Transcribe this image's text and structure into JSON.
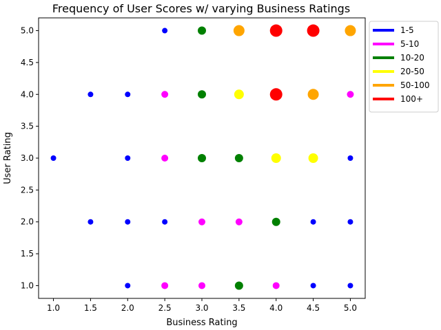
{
  "chart_data": {
    "type": "scatter",
    "title": "Frequency of User Scores w/ varying Business Ratings",
    "xlabel": "Business Rating",
    "ylabel": "User Rating",
    "xlim": [
      0.8,
      5.2
    ],
    "ylim": [
      0.8,
      5.2
    ],
    "x_ticks": [
      "1.0",
      "1.5",
      "2.0",
      "2.5",
      "3.0",
      "3.5",
      "4.0",
      "4.5",
      "5.0"
    ],
    "y_ticks": [
      "1.0",
      "1.5",
      "2.0",
      "2.5",
      "3.0",
      "3.5",
      "4.0",
      "4.5",
      "5.0"
    ],
    "grid": false,
    "legend_position": "outside-top-right",
    "legend": [
      {
        "label": "1-5",
        "color": "#0000ff"
      },
      {
        "label": "5-10",
        "color": "#ff00ff"
      },
      {
        "label": "10-20",
        "color": "#008000"
      },
      {
        "label": "20-50",
        "color": "#ffff00"
      },
      {
        "label": "50-100",
        "color": "#ffa500"
      },
      {
        "label": "100+",
        "color": "#ff0000"
      }
    ],
    "points": [
      {
        "x": 2.5,
        "y": 5.0,
        "bin": "1-5"
      },
      {
        "x": 3.0,
        "y": 5.0,
        "bin": "10-20"
      },
      {
        "x": 3.5,
        "y": 5.0,
        "bin": "50-100"
      },
      {
        "x": 4.0,
        "y": 5.0,
        "bin": "100+"
      },
      {
        "x": 4.5,
        "y": 5.0,
        "bin": "100+"
      },
      {
        "x": 5.0,
        "y": 5.0,
        "bin": "50-100"
      },
      {
        "x": 1.5,
        "y": 4.0,
        "bin": "1-5"
      },
      {
        "x": 2.0,
        "y": 4.0,
        "bin": "1-5"
      },
      {
        "x": 2.5,
        "y": 4.0,
        "bin": "5-10"
      },
      {
        "x": 3.0,
        "y": 4.0,
        "bin": "10-20"
      },
      {
        "x": 3.5,
        "y": 4.0,
        "bin": "20-50"
      },
      {
        "x": 4.0,
        "y": 4.0,
        "bin": "100+"
      },
      {
        "x": 4.5,
        "y": 4.0,
        "bin": "50-100"
      },
      {
        "x": 5.0,
        "y": 4.0,
        "bin": "5-10"
      },
      {
        "x": 1.0,
        "y": 3.0,
        "bin": "1-5"
      },
      {
        "x": 2.0,
        "y": 3.0,
        "bin": "1-5"
      },
      {
        "x": 2.5,
        "y": 3.0,
        "bin": "5-10"
      },
      {
        "x": 3.0,
        "y": 3.0,
        "bin": "10-20"
      },
      {
        "x": 3.5,
        "y": 3.0,
        "bin": "10-20"
      },
      {
        "x": 4.0,
        "y": 3.0,
        "bin": "20-50"
      },
      {
        "x": 4.5,
        "y": 3.0,
        "bin": "20-50"
      },
      {
        "x": 5.0,
        "y": 3.0,
        "bin": "1-5"
      },
      {
        "x": 1.5,
        "y": 2.0,
        "bin": "1-5"
      },
      {
        "x": 2.0,
        "y": 2.0,
        "bin": "1-5"
      },
      {
        "x": 2.5,
        "y": 2.0,
        "bin": "1-5"
      },
      {
        "x": 3.0,
        "y": 2.0,
        "bin": "5-10"
      },
      {
        "x": 3.5,
        "y": 2.0,
        "bin": "5-10"
      },
      {
        "x": 4.0,
        "y": 2.0,
        "bin": "10-20"
      },
      {
        "x": 4.5,
        "y": 2.0,
        "bin": "1-5"
      },
      {
        "x": 5.0,
        "y": 2.0,
        "bin": "1-5"
      },
      {
        "x": 2.0,
        "y": 1.0,
        "bin": "1-5"
      },
      {
        "x": 2.5,
        "y": 1.0,
        "bin": "5-10"
      },
      {
        "x": 3.0,
        "y": 1.0,
        "bin": "5-10"
      },
      {
        "x": 3.5,
        "y": 1.0,
        "bin": "10-20"
      },
      {
        "x": 4.0,
        "y": 1.0,
        "bin": "5-10"
      },
      {
        "x": 4.5,
        "y": 1.0,
        "bin": "1-5"
      },
      {
        "x": 5.0,
        "y": 1.0,
        "bin": "1-5"
      }
    ]
  }
}
